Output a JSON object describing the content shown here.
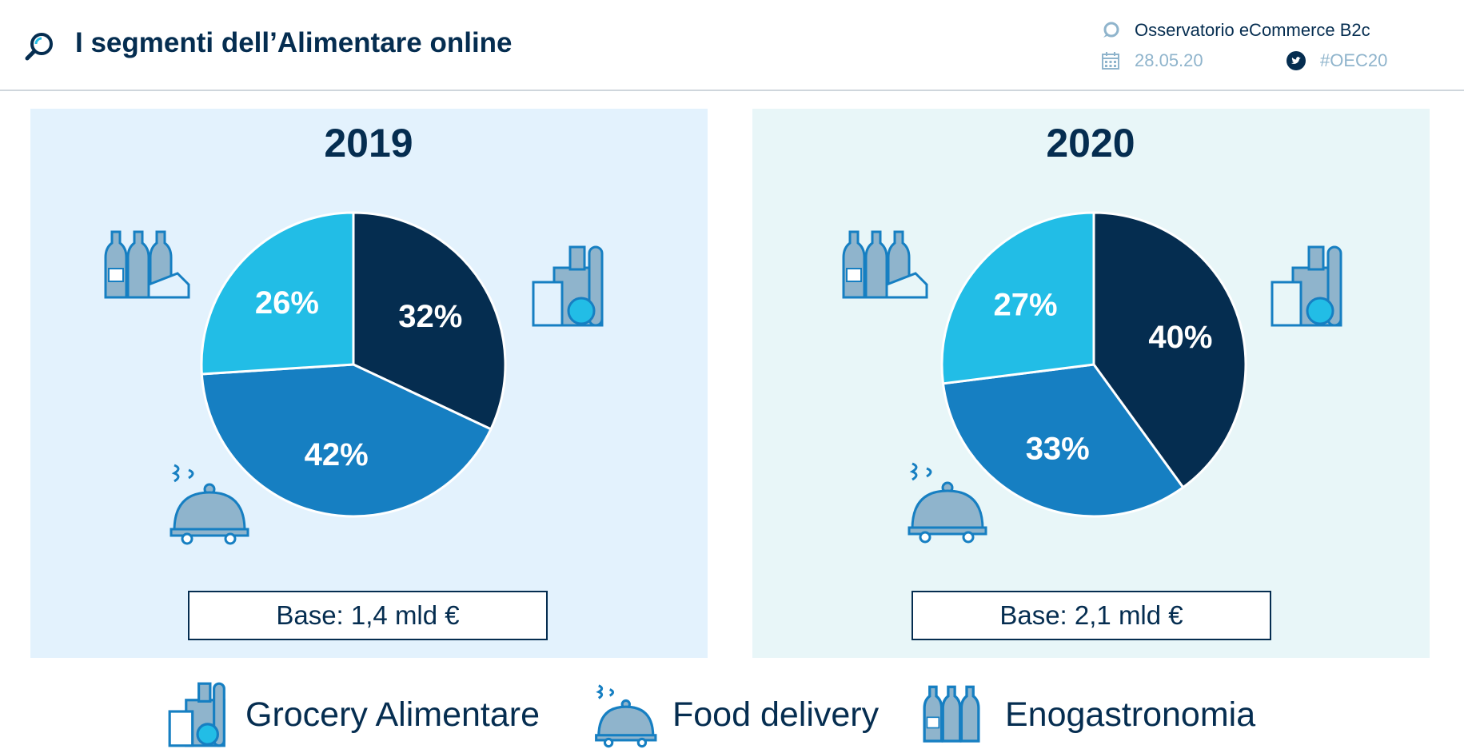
{
  "header": {
    "title": "I segmenti dell’Alimentare online",
    "source": "Osservatorio eCommerce B2c",
    "date": "28.05.20",
    "hashtag": "#OEC20",
    "icons": [
      "magnifier-icon",
      "chat-icon",
      "calendar-icon",
      "twitter-icon"
    ]
  },
  "colors": {
    "grocery": "#052d50",
    "food_delivery": "#167fc2",
    "enogastronomia": "#22bde6",
    "panel_2019": "#e3f2fd",
    "panel_2020": "#e8f6f8"
  },
  "legend": {
    "grocery": "Grocery Alimentare",
    "food_delivery": "Food delivery",
    "enogastronomia": "Enogastronomia"
  },
  "chart_data": [
    {
      "type": "pie",
      "title": "2019",
      "categories": [
        "Grocery Alimentare",
        "Food delivery",
        "Enogastronomia"
      ],
      "values": [
        32,
        42,
        26
      ],
      "labels": [
        "32%",
        "42%",
        "26%"
      ],
      "base": "Base: 1,4 mld €"
    },
    {
      "type": "pie",
      "title": "2020",
      "categories": [
        "Grocery Alimentare",
        "Food delivery",
        "Enogastronomia"
      ],
      "values": [
        40,
        33,
        27
      ],
      "labels": [
        "40%",
        "33%",
        "27%"
      ],
      "base": "Base: 2,1 mld €"
    }
  ]
}
